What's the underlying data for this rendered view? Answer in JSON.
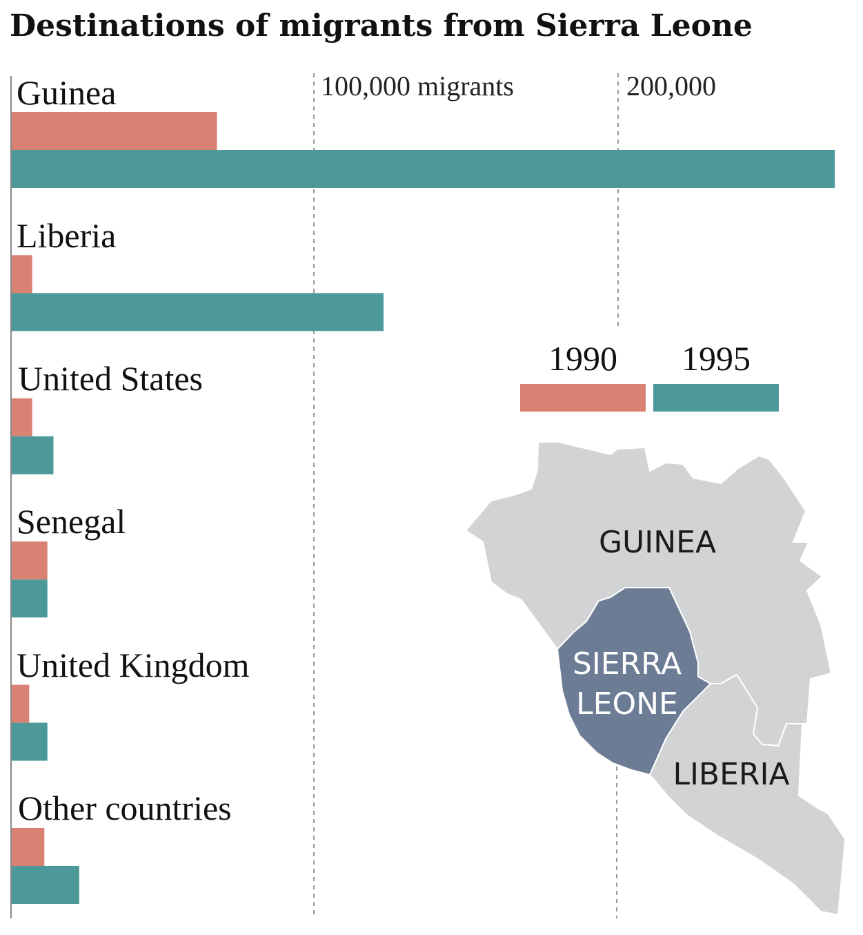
{
  "chart_data": {
    "type": "bar",
    "title": "Destinations of migrants from Sierra Leone",
    "categories": [
      "Guinea",
      "Liberia",
      "United States",
      "Senegal",
      "United Kingdom",
      "Other countries"
    ],
    "series": [
      {
        "name": "1990",
        "color": "#d98273",
        "values": [
          68000,
          7000,
          7000,
          12000,
          6000,
          11000
        ]
      },
      {
        "name": "1995",
        "color": "#4d9898",
        "values": [
          272000,
          123000,
          14000,
          12000,
          12000,
          22500
        ]
      }
    ],
    "xlim": [
      0,
      280000
    ],
    "ticks": [
      {
        "value": 100000,
        "label": "100,000 migrants"
      },
      {
        "value": 200000,
        "label": "200,000"
      }
    ],
    "grid": "dashed vertical",
    "legend_placement": "right"
  },
  "map": {
    "labels": {
      "guinea": "GUINEA",
      "sierra_leone_1": "SIERRA",
      "sierra_leone_2": "LEONE",
      "liberia": "LIBERIA"
    },
    "colors": {
      "neighbors": "#d2d3d5",
      "highlight": "#6b7c94"
    }
  }
}
